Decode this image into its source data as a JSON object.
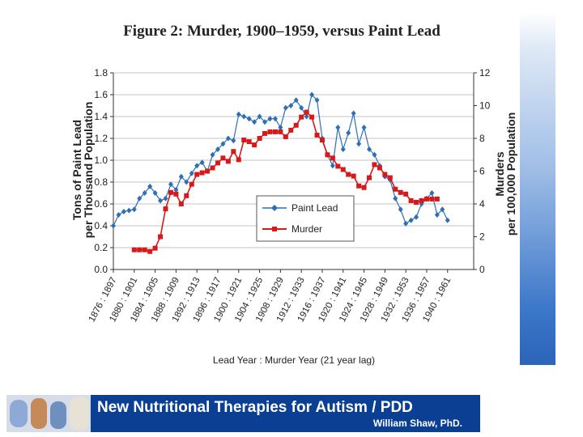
{
  "chart_data": {
    "type": "line",
    "title": "Figure 2: Murder, 1900–1959, versus Paint Lead",
    "xlabel": "Lead Year : Murder Year (21 year lag)",
    "ylabel_left": [
      "Tons of Paint Lead",
      "per Thousand Population"
    ],
    "ylabel_right": [
      "Murders",
      "per 100,000 Population"
    ],
    "ylim_left": [
      0,
      1.8
    ],
    "ylim_right": [
      0,
      12
    ],
    "yticks_left": [
      "0.0",
      "0.2",
      "0.4",
      "0.6",
      "0.8",
      "1.0",
      "1.2",
      "1.4",
      "1.6",
      "1.8"
    ],
    "yticks_right": [
      "0",
      "2",
      "4",
      "6",
      "8",
      "10",
      "12"
    ],
    "xtick_labels": [
      "1876 : 1897",
      "1880 : 1901",
      "1884 : 1905",
      "1888 : 1909",
      "1892 : 1913",
      "1896 : 1917",
      "1900 : 1921",
      "1904 : 1925",
      "1908 : 1929",
      "1912 : 1933",
      "1916 : 1937",
      "1920 : 1941",
      "1924 : 1945",
      "1928 : 1949",
      "1932 : 1953",
      "1936 : 1957",
      "1940 : 1961"
    ],
    "series": [
      {
        "name": "Paint Lead",
        "axis": "left",
        "color": "#2d6fb5",
        "marker": "diamond",
        "start_year": 1876,
        "values": [
          0.4,
          0.5,
          0.53,
          0.54,
          0.55,
          0.65,
          0.7,
          0.76,
          0.7,
          0.63,
          0.65,
          0.78,
          0.73,
          0.85,
          0.8,
          0.88,
          0.95,
          0.98,
          0.9,
          1.05,
          1.1,
          1.15,
          1.2,
          1.18,
          1.42,
          1.4,
          1.38,
          1.35,
          1.4,
          1.35,
          1.38,
          1.38,
          1.3,
          1.48,
          1.5,
          1.55,
          1.48,
          1.4,
          1.6,
          1.55,
          1.2,
          1.05,
          0.95,
          1.3,
          1.1,
          1.25,
          1.43,
          1.15,
          1.3,
          1.1,
          1.05,
          0.95,
          0.85,
          0.82,
          0.65,
          0.55,
          0.42,
          0.45,
          0.48,
          0.6,
          0.65,
          0.7,
          0.5,
          0.55,
          0.45
        ]
      },
      {
        "name": "Murder",
        "axis": "right",
        "color": "#d7191c",
        "marker": "square",
        "start_year": 1880,
        "values": [
          1.2,
          1.2,
          1.2,
          1.1,
          1.3,
          2.0,
          3.7,
          4.7,
          4.6,
          4.0,
          4.5,
          5.2,
          5.8,
          5.9,
          6.0,
          6.2,
          6.5,
          6.8,
          6.6,
          7.2,
          6.7,
          7.9,
          7.8,
          7.6,
          8.0,
          8.3,
          8.4,
          8.4,
          8.4,
          8.1,
          8.5,
          8.8,
          9.3,
          9.6,
          9.3,
          8.2,
          7.9,
          7.0,
          6.8,
          6.3,
          6.1,
          5.8,
          5.7,
          5.1,
          5.0,
          5.6,
          6.4,
          6.2,
          5.8,
          5.6,
          4.9,
          4.7,
          4.6,
          4.2,
          4.1,
          4.2,
          4.3,
          4.3,
          4.3
        ]
      }
    ]
  },
  "banner": {
    "title": "New Nutritional Therapies for Autism / PDD",
    "author": "William Shaw, PhD."
  },
  "colors": {
    "banner_bg": "#0b3f93",
    "lead": "#2d6fb5",
    "murder": "#d7191c"
  }
}
